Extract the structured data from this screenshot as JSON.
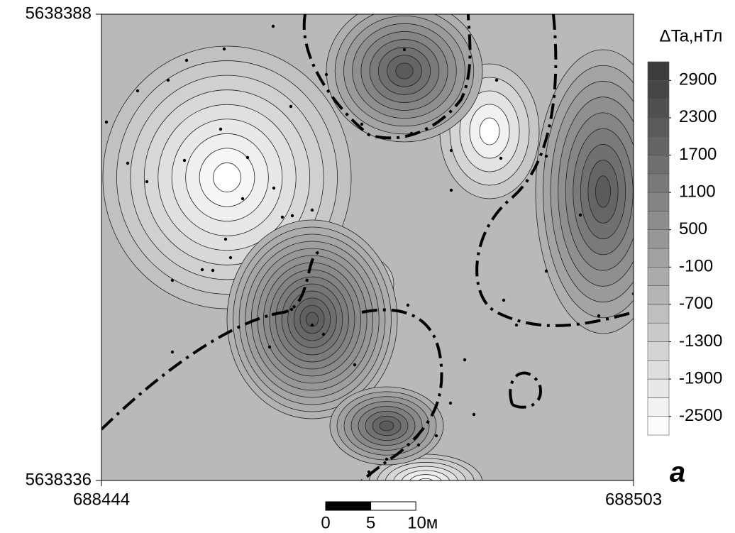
{
  "map": {
    "xticks": [
      688444,
      688503
    ],
    "yticks": [
      5638336,
      5638388
    ],
    "legend": {
      "title": "ΔTa,нТл",
      "ticks": [
        2900,
        2300,
        1700,
        1100,
        500,
        -100,
        -700,
        -1300,
        -1900,
        -2500
      ],
      "lim": [
        -2800,
        3200
      ]
    },
    "scale_bar": {
      "ticks": [
        0,
        5,
        {
          "value": 10,
          "label": "10м"
        }
      ]
    },
    "panel_label": "а"
  }
}
